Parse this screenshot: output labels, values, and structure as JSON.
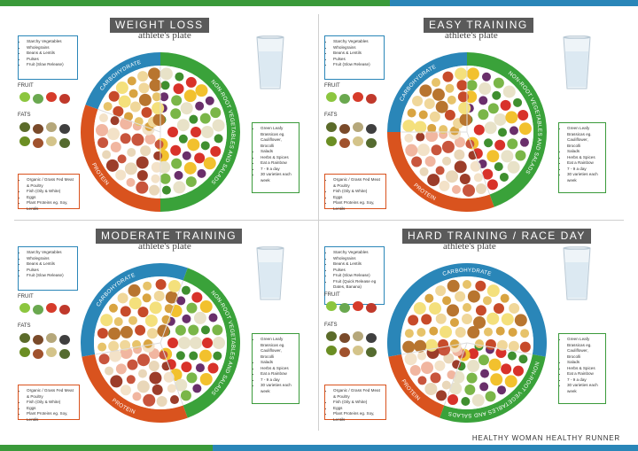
{
  "colors": {
    "carb": "#2a86b8",
    "protein": "#d9531e",
    "veg": "#3aa23a",
    "stripe_green": "#3a9a3a",
    "stripe_blue": "#2a86b8"
  },
  "brand": "HEALTHY WOMAN HEALTHY RUNNER",
  "panels": [
    {
      "title": "WEIGHT LOSS",
      "subtitle": "athlete's plate",
      "labels": {
        "carb": "CARBOHYDRATE",
        "veg": "NON-ROOT VEGETABLES AND SALADS",
        "protein": "PROTEIN"
      },
      "fruit_label": "FRUIT",
      "fats_label": "FATS",
      "carb_items": [
        "Starchy Vegetables",
        "Wholegrains",
        "Beans & Lentils",
        "Pulses",
        "Fruit (Slow Release)"
      ],
      "protein_items": [
        "Organic / Grass Fed Meat & Poultry",
        "Fish (Oily & White)",
        "Eggs",
        "Plant Proteins eg. Soy, Lentils"
      ],
      "veg_items": [
        "Green Leafy Brassicas eg. Cauliflower, Brocolli",
        "Salads",
        "Herbs & Spices",
        "Eat a Rainbow",
        "7 - 9 a day",
        "30 varieties each week"
      ]
    },
    {
      "title": "EASY TRAINING",
      "subtitle": "athlete's plate",
      "labels": {
        "carb": "CARBOHYDRATE",
        "veg": "NON-ROOT VEGETABLES AND SALADS",
        "protein": "PROTEIN"
      },
      "fruit_label": "FRUIT",
      "fats_label": "FATS",
      "carb_items": [
        "Starchy Vegetables",
        "Wholegrains",
        "Beans & Lentils",
        "Pulses",
        "Fruit (Slow Release)"
      ],
      "protein_items": [
        "Organic / Grass Fed Meat & Poultry",
        "Fish (Oily & White)",
        "Eggs",
        "Plant Proteins eg. Soy, Lentils"
      ],
      "veg_items": [
        "Green Leafy Brassicas eg. Cauliflower, Brocolli",
        "Salads",
        "Herbs & Spices",
        "Eat a Rainbow",
        "7 - 9 a day",
        "30 varieties each week"
      ]
    },
    {
      "title": "MODERATE TRAINING",
      "subtitle": "athlete's plate",
      "labels": {
        "carb": "CARBOHYDRATE",
        "veg": "NON-ROOT VEGETABLES AND SALADS",
        "protein": "PROTEIN"
      },
      "fruit_label": "FRUIT",
      "fats_label": "FATS",
      "carb_items": [
        "Starchy Vegetables",
        "Wholegrains",
        "Beans & Lentils",
        "Pulses",
        "Fruit (Slow Release)"
      ],
      "protein_items": [
        "Organic / Grass Fed Meat & Poultry",
        "Fish (Oily & White)",
        "Eggs",
        "Plant Proteins eg. Soy, Lentils"
      ],
      "veg_items": [
        "Green Leafy Brassicas eg. Cauliflower, Brocolli",
        "Salads",
        "Herbs & Spices",
        "Eat a Rainbow",
        "7 - 9 a day",
        "30 varieties each week"
      ]
    },
    {
      "title": "HARD TRAINING / RACE DAY",
      "subtitle": "athlete's plate",
      "labels": {
        "carb": "CARBOHYDRATE",
        "veg": "NON-ROOT VEGETABLES AND SALADS",
        "protein": "PROTEIN"
      },
      "fruit_label": "FRUIT",
      "fats_label": "FATS",
      "carb_items": [
        "Starchy Vegetables",
        "Wholegrains",
        "Beans & Lentils",
        "Pulses",
        "Fruit (Slow Release)",
        "Fruit (Quick Release eg Dates, Banana)"
      ],
      "protein_items": [
        "Organic / Grass Fed Meat & Poultry",
        "Fish (Oily & White)",
        "Eggs",
        "Plant Proteins eg. Soy, Lentils"
      ],
      "veg_items": [
        "Green Leafy Brassicas eg. Cauliflower, Brocolli",
        "Salads",
        "Herbs & Spices",
        "Eat a Rainbow",
        "7 - 9 a day",
        "30 varieties each week"
      ]
    }
  ]
}
